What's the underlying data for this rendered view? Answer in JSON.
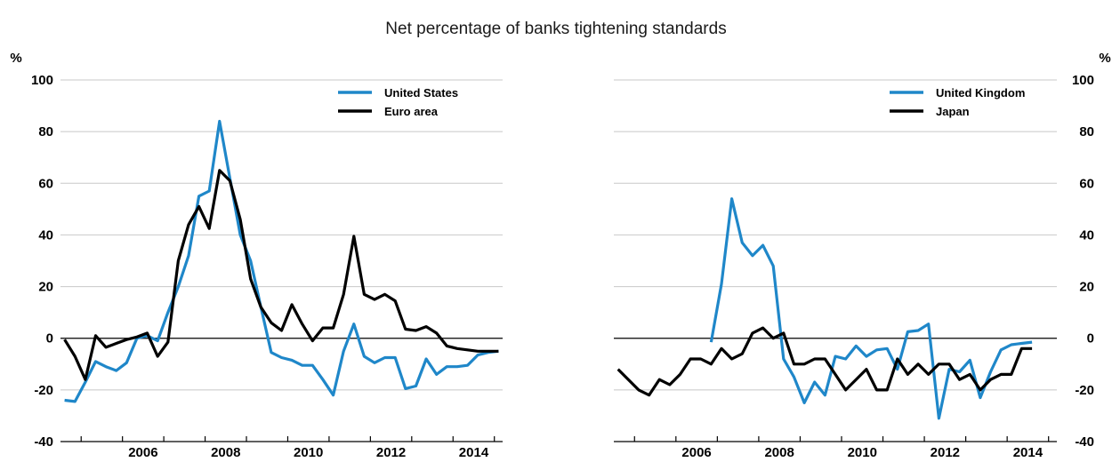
{
  "title": "Net percentage of banks tightening standards",
  "colors": {
    "blue": "#1f87c9",
    "black": "#000000",
    "grid": "#c8c8c8",
    "axis": "#000000"
  },
  "chart_data": [
    {
      "type": "line",
      "unit_label": "%",
      "ylim": [
        -40,
        100
      ],
      "yticks": [
        -40,
        -20,
        0,
        20,
        40,
        60,
        80,
        100
      ],
      "xlim": [
        2004.5,
        2015.2
      ],
      "xticks": [
        "2006",
        "2008",
        "2010",
        "2012",
        "2014"
      ],
      "grid": true,
      "legend_position": "top-right",
      "series": [
        {
          "name": "United States",
          "color": "#1f87c9",
          "x": [
            2004.6,
            2004.85,
            2005.1,
            2005.35,
            2005.6,
            2005.85,
            2006.1,
            2006.35,
            2006.6,
            2006.85,
            2007.1,
            2007.35,
            2007.6,
            2007.85,
            2008.1,
            2008.35,
            2008.6,
            2008.85,
            2009.1,
            2009.35,
            2009.6,
            2009.85,
            2010.1,
            2010.35,
            2010.6,
            2010.85,
            2011.1,
            2011.35,
            2011.6,
            2011.85,
            2012.1,
            2012.35,
            2012.6,
            2012.85,
            2013.1,
            2013.35,
            2013.6,
            2013.85,
            2014.1,
            2014.35,
            2014.6,
            2014.85,
            2015.1
          ],
          "y": [
            -24,
            -24.5,
            -17,
            -9,
            -11,
            -12.5,
            -9.5,
            0,
            1,
            -1,
            10,
            20,
            32,
            55,
            57,
            84,
            62,
            40,
            30,
            12,
            -5.5,
            -7.5,
            -8.5,
            -10.5,
            -10.5,
            -16,
            -22,
            -5,
            5.5,
            -7,
            -9.5,
            -7.5,
            -7.5,
            -19.5,
            -18.5,
            -8,
            -14,
            -11,
            -11,
            -10.5,
            -6.5,
            -5.5,
            -5
          ]
        },
        {
          "name": "Euro area",
          "color": "#000000",
          "x": [
            2004.6,
            2004.85,
            2005.1,
            2005.35,
            2005.6,
            2005.85,
            2006.1,
            2006.35,
            2006.6,
            2006.85,
            2007.1,
            2007.35,
            2007.6,
            2007.85,
            2008.1,
            2008.35,
            2008.6,
            2008.85,
            2009.1,
            2009.35,
            2009.6,
            2009.85,
            2010.1,
            2010.35,
            2010.6,
            2010.85,
            2011.1,
            2011.35,
            2011.6,
            2011.85,
            2012.1,
            2012.35,
            2012.6,
            2012.85,
            2013.1,
            2013.35,
            2013.6,
            2013.85,
            2014.1,
            2014.35,
            2014.6,
            2014.85,
            2015.1
          ],
          "y": [
            -0.5,
            -7,
            -16,
            1,
            -3.5,
            -2,
            -0.5,
            0.5,
            2,
            -7,
            -1.5,
            30,
            44,
            51,
            42.5,
            65,
            61,
            46,
            23,
            12,
            6,
            3,
            13,
            5.5,
            -1,
            4,
            4,
            17,
            39.5,
            17,
            15,
            17,
            14.5,
            3.5,
            3,
            4.5,
            2,
            -3,
            -4,
            -4.5,
            -5,
            -5,
            -5
          ]
        }
      ]
    },
    {
      "type": "line",
      "unit_label": "%",
      "ylim": [
        -40,
        100
      ],
      "yticks": [
        -40,
        -20,
        0,
        20,
        40,
        60,
        80,
        100
      ],
      "xlim": [
        2004.5,
        2015.2
      ],
      "xticks": [
        "2006",
        "2008",
        "2010",
        "2012",
        "2014"
      ],
      "grid": true,
      "legend_position": "top-right",
      "series": [
        {
          "name": "United Kingdom",
          "color": "#1f87c9",
          "x": [
            2006.85,
            2007.1,
            2007.35,
            2007.6,
            2007.85,
            2008.1,
            2008.35,
            2008.6,
            2008.85,
            2009.1,
            2009.35,
            2009.6,
            2009.85,
            2010.1,
            2010.35,
            2010.6,
            2010.85,
            2011.1,
            2011.35,
            2011.6,
            2011.85,
            2012.1,
            2012.35,
            2012.6,
            2012.85,
            2013.1,
            2013.35,
            2013.6,
            2013.85,
            2014.1,
            2014.35,
            2014.6
          ],
          "y": [
            -1.5,
            21,
            54,
            37,
            32,
            36,
            28,
            -8,
            -15,
            -25,
            -17,
            -22,
            -7,
            -8,
            -3,
            -7,
            -4.5,
            -4,
            -12,
            2.5,
            3,
            5.5,
            -31,
            -12,
            -13,
            -8.5,
            -23,
            -13,
            -4.5,
            -2.5,
            -2,
            -1.5
          ]
        },
        {
          "name": "Japan",
          "color": "#000000",
          "x": [
            2004.6,
            2004.85,
            2005.1,
            2005.35,
            2005.6,
            2005.85,
            2006.1,
            2006.35,
            2006.6,
            2006.85,
            2007.1,
            2007.35,
            2007.6,
            2007.85,
            2008.1,
            2008.35,
            2008.6,
            2008.85,
            2009.1,
            2009.35,
            2009.6,
            2009.85,
            2010.1,
            2010.35,
            2010.6,
            2010.85,
            2011.1,
            2011.35,
            2011.6,
            2011.85,
            2012.1,
            2012.35,
            2012.6,
            2012.85,
            2013.1,
            2013.35,
            2013.6,
            2013.85,
            2014.1,
            2014.35,
            2014.6
          ],
          "y": [
            -12,
            -16,
            -20,
            -22,
            -16,
            -18,
            -14,
            -8,
            -8,
            -10,
            -4,
            -8,
            -6,
            2,
            4,
            0,
            2,
            -10,
            -10,
            -8,
            -8,
            -14,
            -20,
            -16,
            -12,
            -20,
            -20,
            -8,
            -14,
            -10,
            -14,
            -10,
            -10,
            -16,
            -14,
            -20,
            -16,
            -14,
            -14,
            -4,
            -4
          ]
        }
      ]
    }
  ]
}
